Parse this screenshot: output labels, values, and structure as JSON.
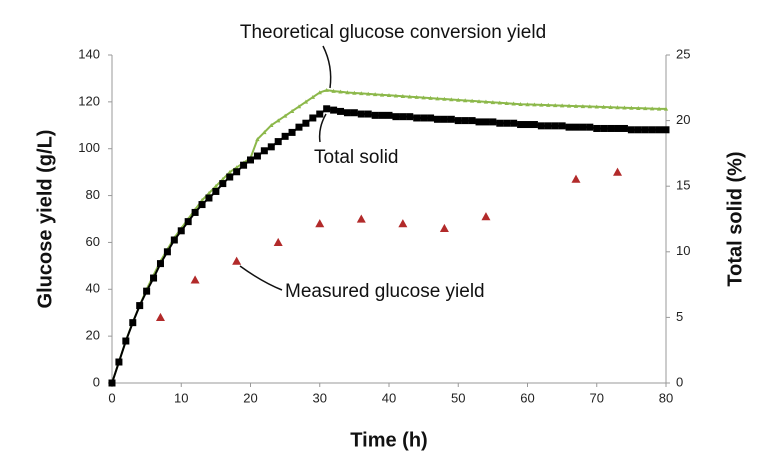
{
  "chart_data": {
    "type": "line",
    "annotations": [
      "Theoretical glucose conversion yield",
      "Total solid",
      "Measured glucose yield"
    ],
    "x_label": "Time (h)",
    "y_label": "Glucose yield (g/L)",
    "y2_label": "Total solid (%)",
    "xlim": [
      0,
      80
    ],
    "xticks": [
      0,
      10,
      20,
      30,
      40,
      50,
      60,
      70,
      80
    ],
    "ylim": [
      0,
      140
    ],
    "yticks": [
      0,
      20,
      40,
      60,
      80,
      100,
      120,
      140
    ],
    "y2lim": [
      0,
      25
    ],
    "y2ticks": [
      0,
      5,
      10,
      15,
      20,
      25
    ],
    "series": [
      {
        "name": "Theoretical glucose conversion yield",
        "color": "#8cb84a",
        "marker": "triangle",
        "line": true,
        "x": [
          0,
          1,
          2,
          3,
          4,
          5,
          6,
          7,
          8,
          9,
          10,
          11,
          12,
          13,
          14,
          15,
          16,
          17,
          18,
          19,
          20,
          21,
          22,
          23,
          24,
          25,
          26,
          27,
          28,
          29,
          30,
          31,
          32,
          33,
          34,
          35,
          36,
          37,
          38,
          39,
          40,
          41,
          42,
          43,
          44,
          45,
          46,
          47,
          48,
          49,
          50,
          51,
          52,
          53,
          54,
          55,
          56,
          57,
          58,
          59,
          60,
          61,
          62,
          63,
          64,
          65,
          66,
          67,
          68,
          69,
          70,
          71,
          72,
          73,
          74,
          75,
          76,
          77,
          78,
          79,
          80
        ],
        "values": [
          0,
          9,
          18,
          26,
          33,
          40,
          46,
          52,
          57,
          62,
          66,
          70,
          74,
          78,
          81,
          84,
          87,
          90,
          92,
          94,
          96,
          104,
          107,
          110,
          112,
          114,
          116,
          118,
          120,
          122,
          124,
          125,
          124.6,
          124.3,
          124,
          123.8,
          123.6,
          123.4,
          123.2,
          123,
          122.8,
          122.6,
          122.4,
          122.2,
          122,
          121.8,
          121.6,
          121.4,
          121.2,
          121,
          120.8,
          120.6,
          120.4,
          120.2,
          120,
          119.8,
          119.6,
          119.4,
          119.2,
          119,
          118.9,
          118.8,
          118.7,
          118.6,
          118.5,
          118.4,
          118.3,
          118.2,
          118.1,
          118,
          117.9,
          117.8,
          117.7,
          117.6,
          117.5,
          117.4,
          117.3,
          117.2,
          117.1,
          117,
          117
        ]
      },
      {
        "name": "Total solid",
        "color": "#000000",
        "marker": "square",
        "line": true,
        "axis": "y2",
        "x": [
          0,
          1,
          2,
          3,
          4,
          5,
          6,
          7,
          8,
          9,
          10,
          11,
          12,
          13,
          14,
          15,
          16,
          17,
          18,
          19,
          20,
          21,
          22,
          23,
          24,
          25,
          26,
          27,
          28,
          29,
          30,
          31,
          32,
          33,
          34,
          35,
          36,
          37,
          38,
          39,
          40,
          41,
          42,
          43,
          44,
          45,
          46,
          47,
          48,
          49,
          50,
          51,
          52,
          53,
          54,
          55,
          56,
          57,
          58,
          59,
          60,
          61,
          62,
          63,
          64,
          65,
          66,
          67,
          68,
          69,
          70,
          71,
          72,
          73,
          74,
          75,
          76,
          77,
          78,
          79,
          80
        ],
        "values": [
          0,
          1.6,
          3.2,
          4.6,
          5.9,
          7.0,
          8.0,
          9.1,
          10.0,
          10.9,
          11.6,
          12.3,
          13.0,
          13.6,
          14.1,
          14.6,
          15.2,
          15.7,
          16.1,
          16.6,
          17.0,
          17.3,
          17.7,
          18.0,
          18.4,
          18.8,
          19.1,
          19.5,
          19.8,
          20.2,
          20.5,
          20.9,
          20.8,
          20.7,
          20.6,
          20.6,
          20.5,
          20.5,
          20.4,
          20.4,
          20.4,
          20.3,
          20.3,
          20.3,
          20.2,
          20.2,
          20.2,
          20.1,
          20.1,
          20.1,
          20.0,
          20.0,
          20.0,
          19.9,
          19.9,
          19.9,
          19.8,
          19.8,
          19.8,
          19.7,
          19.7,
          19.7,
          19.6,
          19.6,
          19.6,
          19.6,
          19.5,
          19.5,
          19.5,
          19.5,
          19.4,
          19.4,
          19.4,
          19.4,
          19.4,
          19.3,
          19.3,
          19.3,
          19.3,
          19.3,
          19.3
        ]
      },
      {
        "name": "Measured glucose yield",
        "color": "#b22a2a",
        "marker": "triangle",
        "line": false,
        "x": [
          7,
          12,
          18,
          24,
          30,
          36,
          42,
          48,
          54,
          67,
          73
        ],
        "values": [
          28,
          44,
          52,
          60,
          68,
          70,
          68,
          66,
          71,
          87,
          90
        ]
      }
    ]
  }
}
